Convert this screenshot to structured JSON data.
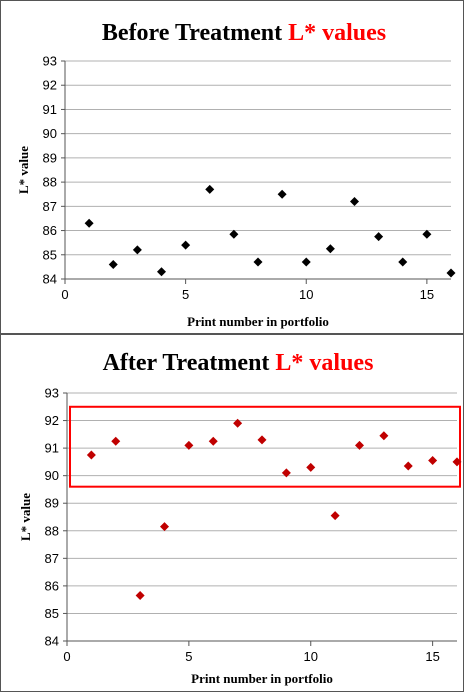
{
  "chart_data": [
    {
      "type": "scatter",
      "title": "Before Treatment",
      "title_highlight": "L* values",
      "xlabel": "Print number in portfolio",
      "ylabel": "L* value",
      "xlim": [
        0,
        16
      ],
      "ylim": [
        84,
        93
      ],
      "xticks": [
        0,
        5,
        10,
        15
      ],
      "yticks": [
        84,
        85,
        86,
        87,
        88,
        89,
        90,
        91,
        92,
        93
      ],
      "grid": "horizontal",
      "marker_color": "#000000",
      "marker": "diamond",
      "points": [
        {
          "x": 1,
          "y": 86.3
        },
        {
          "x": 2,
          "y": 84.6
        },
        {
          "x": 3,
          "y": 85.2
        },
        {
          "x": 4,
          "y": 84.3
        },
        {
          "x": 5,
          "y": 85.4
        },
        {
          "x": 6,
          "y": 87.7
        },
        {
          "x": 7,
          "y": 85.85
        },
        {
          "x": 8,
          "y": 84.7
        },
        {
          "x": 9,
          "y": 87.5
        },
        {
          "x": 10,
          "y": 84.7
        },
        {
          "x": 11,
          "y": 85.25
        },
        {
          "x": 12,
          "y": 87.2
        },
        {
          "x": 13,
          "y": 85.75
        },
        {
          "x": 14,
          "y": 84.7
        },
        {
          "x": 15,
          "y": 85.85
        },
        {
          "x": 16,
          "y": 84.25
        }
      ]
    },
    {
      "type": "scatter",
      "title": "After Treatment",
      "title_highlight": "L* values",
      "xlabel": "Print number in portfolio",
      "ylabel": "L* value",
      "xlim": [
        0,
        16
      ],
      "ylim": [
        84,
        93
      ],
      "xticks": [
        0,
        5,
        10,
        15
      ],
      "yticks": [
        84,
        85,
        86,
        87,
        88,
        89,
        90,
        91,
        92,
        93
      ],
      "grid": "horizontal",
      "marker_color": "#c00000",
      "marker": "diamond",
      "highlight_box": {
        "y_from": 89.6,
        "y_to": 92.5,
        "color": "#ff0000"
      },
      "points": [
        {
          "x": 1,
          "y": 90.75
        },
        {
          "x": 2,
          "y": 91.25
        },
        {
          "x": 3,
          "y": 85.65
        },
        {
          "x": 4,
          "y": 88.15
        },
        {
          "x": 5,
          "y": 91.1
        },
        {
          "x": 6,
          "y": 91.25
        },
        {
          "x": 7,
          "y": 91.9
        },
        {
          "x": 8,
          "y": 91.3
        },
        {
          "x": 9,
          "y": 90.1
        },
        {
          "x": 10,
          "y": 90.3
        },
        {
          "x": 11,
          "y": 88.55
        },
        {
          "x": 12,
          "y": 91.1
        },
        {
          "x": 13,
          "y": 91.45
        },
        {
          "x": 14,
          "y": 90.35
        },
        {
          "x": 15,
          "y": 90.55
        },
        {
          "x": 16,
          "y": 90.5
        }
      ]
    }
  ]
}
